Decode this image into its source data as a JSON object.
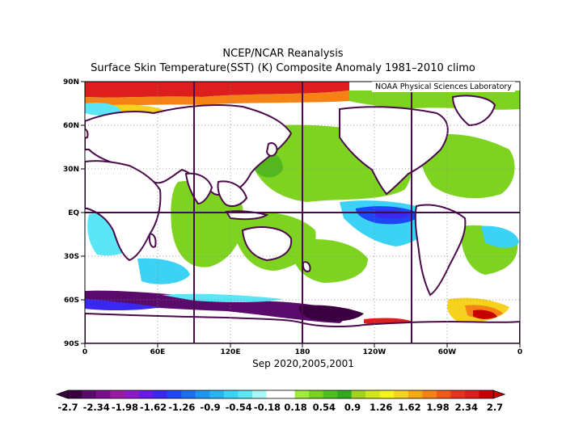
{
  "title_line1": "NCEP/NCAR Reanalysis",
  "title_line2": "Surface Skin Temperature(SST) (K) Composite Anomaly 1981–2010 climo",
  "credit": "NOAA Physical Sciences Laboratory",
  "period": "Sep 2020,2005,2001",
  "map": {
    "projection": "equirectangular",
    "lon_range": [
      0,
      360
    ],
    "lat_range": [
      -90,
      90
    ],
    "lat_labels": [
      "90N",
      "60N",
      "30N",
      "EQ",
      "30S",
      "60S",
      "90S"
    ],
    "lon_labels": [
      "0",
      "60E",
      "120E",
      "180",
      "120W",
      "60W",
      "0"
    ],
    "land_color": "#ffffff",
    "coastline_color": "#4b0a4b"
  },
  "colorbar": {
    "labels": [
      "-2.7",
      "-2.34",
      "-1.98",
      "-1.62",
      "-1.26",
      "-0.9",
      "-0.54",
      "-0.18",
      "0.18",
      "0.54",
      "0.9",
      "1.26",
      "1.62",
      "1.98",
      "2.34",
      "2.7"
    ],
    "colors": [
      "#3b003f",
      "#5a0a6b",
      "#7a0f8c",
      "#9a1aa3",
      "#8c1ac8",
      "#6a1ae6",
      "#3b28f0",
      "#1e46f5",
      "#1e6ef0",
      "#1e96f0",
      "#28b4f0",
      "#3cd2f5",
      "#5ae6f5",
      "#aaf5f5",
      "#ffffff",
      "#ffffff",
      "#a0eb3c",
      "#78d21e",
      "#50be1e",
      "#32aa1e",
      "#a0d21e",
      "#d2e61e",
      "#f5f51e",
      "#f5d21e",
      "#f5aa14",
      "#f58214",
      "#f05a14",
      "#e6321e",
      "#dc1e1e",
      "#c80000"
    ]
  }
}
